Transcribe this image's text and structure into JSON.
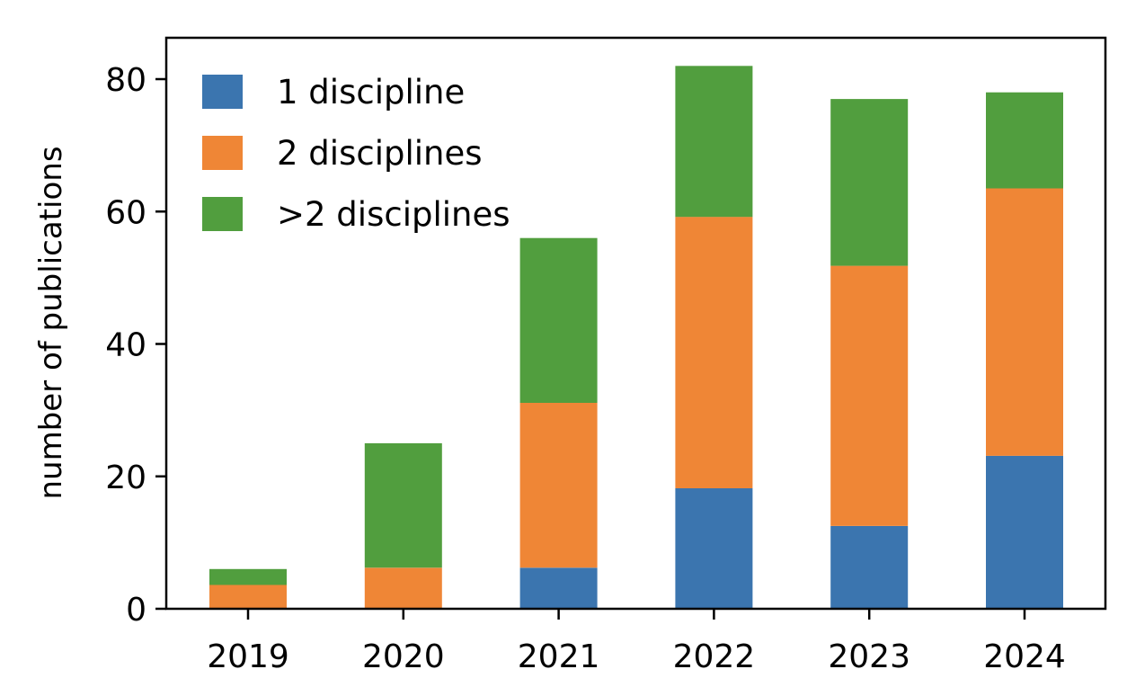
{
  "chart_data": {
    "type": "bar",
    "stacked": true,
    "title": "",
    "xlabel": "",
    "ylabel": "number of publications",
    "ylim": [
      0,
      86
    ],
    "yticks": [
      0,
      20,
      40,
      60,
      80
    ],
    "categories": [
      "2019",
      "2020",
      "2021",
      "2022",
      "2023",
      "2024"
    ],
    "series": [
      {
        "name": "1 discipline",
        "color": "#3b75af",
        "values": [
          0,
          0,
          6.2,
          18.2,
          12.5,
          23.1
        ]
      },
      {
        "name": "2 disciplines",
        "color": "#ef8636",
        "values": [
          3.6,
          6.2,
          24.9,
          41.0,
          39.3,
          40.4
        ]
      },
      {
        "name": ">2 disciplines",
        "color": "#519e3e",
        "values": [
          2.4,
          18.8,
          24.9,
          22.8,
          25.2,
          14.5
        ]
      }
    ],
    "legend": {
      "position": "top-left"
    },
    "grid": false
  }
}
